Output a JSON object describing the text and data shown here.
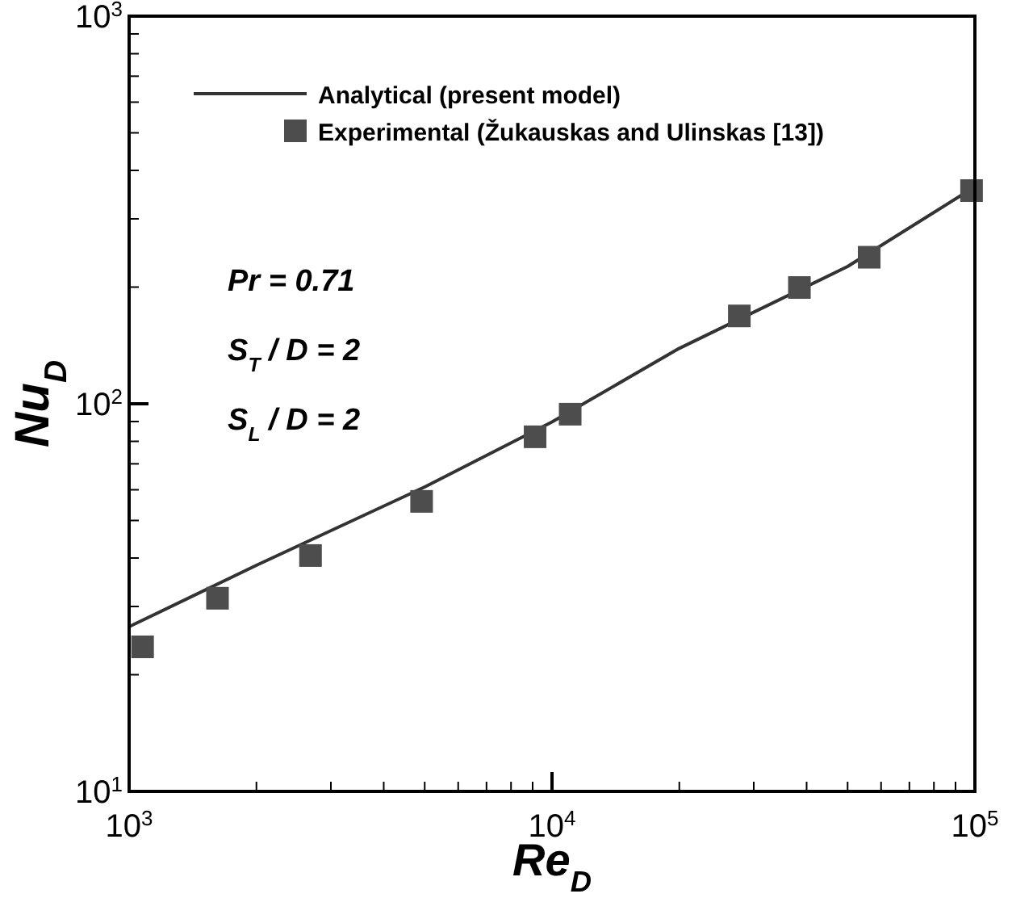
{
  "chart_data": {
    "type": "line",
    "xlabel": "Re$_{D}$",
    "ylabel": "Nu$_{D}$",
    "log": "xy",
    "grid": false,
    "legend": "top left",
    "xlim": [
      1000,
      100000
    ],
    "ylim": [
      10,
      1000
    ],
    "xticks": [
      {
        "value": 1000,
        "label": "10$^{3}$"
      },
      {
        "value": 2000,
        "label": null
      },
      {
        "value": 3000,
        "label": null
      },
      {
        "value": 4000,
        "label": null
      },
      {
        "value": 5000,
        "label": null
      },
      {
        "value": 6000,
        "label": null
      },
      {
        "value": 7000,
        "label": null
      },
      {
        "value": 8000,
        "label": null
      },
      {
        "value": 9000,
        "label": null
      },
      {
        "value": 10000,
        "label": "10$^{4}$"
      },
      {
        "value": 20000,
        "label": null
      },
      {
        "value": 30000,
        "label": null
      },
      {
        "value": 40000,
        "label": null
      },
      {
        "value": 50000,
        "label": null
      },
      {
        "value": 60000,
        "label": null
      },
      {
        "value": 70000,
        "label": null
      },
      {
        "value": 80000,
        "label": null
      },
      {
        "value": 90000,
        "label": null
      },
      {
        "value": 100000,
        "label": "10$^{5}$"
      }
    ],
    "yticks": [
      {
        "value": 10,
        "label": "10$^{1}$"
      },
      {
        "value": 20,
        "label": null
      },
      {
        "value": 30,
        "label": null
      },
      {
        "value": 40,
        "label": null
      },
      {
        "value": 50,
        "label": null
      },
      {
        "value": 60,
        "label": null
      },
      {
        "value": 70,
        "label": null
      },
      {
        "value": 80,
        "label": null
      },
      {
        "value": 90,
        "label": null
      },
      {
        "value": 100,
        "label": "10$^{2}$"
      },
      {
        "value": 200,
        "label": null
      },
      {
        "value": 300,
        "label": null
      },
      {
        "value": 400,
        "label": null
      },
      {
        "value": 500,
        "label": null
      },
      {
        "value": 600,
        "label": null
      },
      {
        "value": 700,
        "label": null
      },
      {
        "value": 800,
        "label": null
      },
      {
        "value": 900,
        "label": null
      },
      {
        "value": 1000,
        "label": "10$^{3}$"
      }
    ],
    "annotations": [
      "Pr = 0.71",
      "S$_{T}$ / D = 2",
      "S$_{L}$ / D = 2"
    ],
    "series": [
      {
        "name": "Analytical (present model)",
        "color": "#333333",
        "line_style": "solid",
        "marker": "none",
        "x": [
          1000,
          2000,
          5000,
          10000,
          20000,
          50000,
          100000
        ],
        "values": [
          26.6,
          38.3,
          61,
          89.8,
          139,
          226,
          363
        ]
      },
      {
        "name": "Experimental (Žukauskas and Ulinskas [13])",
        "type": "scatter",
        "color": "#4d4d4d",
        "marker": "square",
        "x": [
          1076,
          1618,
          2685,
          4916,
          9120,
          11040,
          27730,
          38460,
          56240,
          98200
        ],
        "values": [
          23.6,
          31.5,
          40.6,
          56.0,
          82.2,
          94.0,
          168.5,
          199.5,
          238.8,
          354.8
        ]
      }
    ]
  }
}
